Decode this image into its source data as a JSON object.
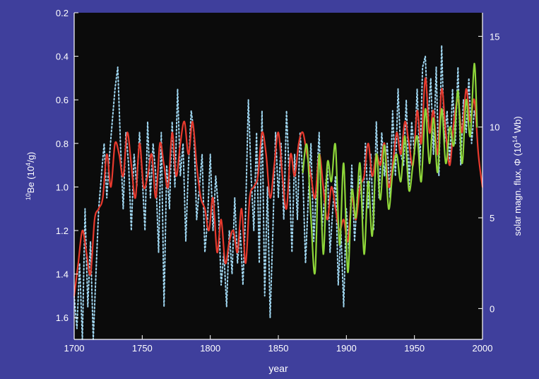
{
  "chart_data": {
    "type": "line",
    "title": "",
    "xlabel": "year",
    "ylabel_left_prefix": "10",
    "ylabel_left": "Be (10",
    "ylabel_left_exp": "4",
    "ylabel_left_suffix": "/g)",
    "ylabel_right": "solar magn. flux, Φ (10",
    "ylabel_right_exp": "14",
    "ylabel_right_suffix": " Wb)",
    "xlim": [
      1700,
      2000
    ],
    "ylim_left": [
      1.7,
      0.2
    ],
    "ylim_right": [
      -1.7,
      16.3
    ],
    "left_axis_inverted": true,
    "grid": false,
    "x_ticks": [
      1700,
      1750,
      1800,
      1850,
      1900,
      1950,
      2000
    ],
    "x_tick_labels": [
      "1700",
      "1750",
      "1800",
      "1850",
      "1900",
      "1950",
      "2000"
    ],
    "y_left_ticks": [
      0.2,
      0.4,
      0.6,
      0.8,
      1.0,
      1.2,
      1.4,
      1.6
    ],
    "y_left_tick_labels": [
      "0.2",
      "0.4",
      "0.6",
      "0.8",
      "1.0",
      "1.2",
      "1.4",
      "1.6"
    ],
    "y_right_ticks": [
      0,
      5,
      10,
      15
    ],
    "y_right_tick_labels": [
      "0",
      "5",
      "10",
      "15"
    ],
    "series": [
      {
        "axis": "left",
        "color": "#9fd6f0",
        "style": "dotted",
        "x": [
          1700,
          1702,
          1704,
          1706,
          1708,
          1710,
          1712,
          1714,
          1716,
          1718,
          1720,
          1722,
          1724,
          1726,
          1728,
          1730,
          1732,
          1734,
          1736,
          1738,
          1740,
          1742,
          1744,
          1746,
          1748,
          1750,
          1752,
          1754,
          1756,
          1758,
          1760,
          1762,
          1764,
          1766,
          1768,
          1770,
          1772,
          1774,
          1776,
          1778,
          1780,
          1782,
          1784,
          1786,
          1788,
          1790,
          1792,
          1794,
          1796,
          1798,
          1800,
          1802,
          1804,
          1806,
          1808,
          1810,
          1812,
          1814,
          1816,
          1818,
          1820,
          1822,
          1824,
          1826,
          1828,
          1830,
          1832,
          1834,
          1836,
          1838,
          1840,
          1842,
          1844,
          1846,
          1848,
          1850,
          1852,
          1854,
          1856,
          1858,
          1860,
          1862,
          1864,
          1866,
          1868,
          1870,
          1872,
          1874,
          1876,
          1878,
          1880,
          1882,
          1884,
          1886,
          1888,
          1890,
          1892,
          1894,
          1896,
          1898,
          1900,
          1902,
          1904,
          1906,
          1908,
          1910,
          1912,
          1914,
          1916,
          1918,
          1920,
          1922,
          1924,
          1926,
          1928,
          1930,
          1932,
          1934,
          1936,
          1938,
          1940,
          1942,
          1944,
          1946,
          1948,
          1950,
          1952,
          1954,
          1956,
          1958,
          1960,
          1962,
          1964,
          1966,
          1968,
          1970,
          1972,
          1974,
          1976,
          1978,
          1980,
          1982,
          1984,
          1986,
          1988,
          1990,
          1992,
          1994,
          1996
        ],
        "values": [
          1.5,
          1.65,
          1.35,
          1.7,
          1.1,
          1.55,
          1.25,
          1.7,
          1.4,
          1.1,
          0.95,
          0.8,
          1.05,
          0.85,
          0.7,
          0.55,
          0.45,
          0.8,
          1.1,
          0.75,
          0.9,
          1.2,
          0.85,
          1.0,
          0.75,
          0.95,
          1.2,
          0.7,
          1.05,
          0.8,
          0.95,
          1.3,
          0.75,
          1.55,
          0.9,
          1.1,
          0.7,
          1.0,
          0.55,
          0.95,
          0.8,
          1.25,
          0.9,
          0.65,
          0.75,
          1.15,
          1.0,
          0.85,
          1.3,
          1.15,
          0.85,
          1.2,
          0.95,
          1.1,
          1.45,
          1.3,
          1.55,
          1.2,
          1.4,
          1.05,
          1.35,
          1.2,
          1.45,
          1.1,
          0.6,
          0.95,
          1.2,
          0.75,
          1.35,
          0.65,
          1.5,
          1.0,
          1.6,
          1.2,
          0.75,
          1.05,
          0.8,
          1.15,
          0.65,
          0.95,
          1.3,
          0.85,
          1.15,
          0.75,
          0.95,
          1.35,
          1.05,
          0.8,
          1.25,
          1.0,
          0.75,
          1.2,
          1.05,
          0.9,
          1.3,
          1.1,
          0.95,
          1.45,
          1.2,
          1.55,
          1.1,
          1.3,
          0.9,
          1.25,
          1.05,
          0.95,
          1.15,
          0.8,
          1.1,
          0.85,
          1.2,
          0.7,
          1.05,
          0.75,
          0.95,
          0.8,
          1.05,
          0.65,
          0.95,
          0.55,
          0.85,
          0.9,
          0.6,
          1.0,
          0.7,
          0.85,
          0.55,
          0.9,
          0.45,
          0.4,
          0.7,
          0.5,
          0.85,
          0.45,
          0.95,
          0.35,
          0.8,
          0.65,
          0.9,
          0.55,
          0.8,
          0.45,
          0.9,
          0.6,
          0.75,
          0.5,
          0.8,
          0.65,
          0.7
        ]
      },
      {
        "axis": "left",
        "color": "#e83a2e",
        "style": "solid",
        "x": [
          1700,
          1703,
          1706,
          1709,
          1712,
          1715,
          1718,
          1721,
          1724,
          1727,
          1730,
          1733,
          1736,
          1739,
          1742,
          1745,
          1748,
          1751,
          1754,
          1757,
          1760,
          1763,
          1766,
          1769,
          1772,
          1775,
          1778,
          1781,
          1784,
          1787,
          1790,
          1793,
          1796,
          1799,
          1802,
          1805,
          1808,
          1811,
          1814,
          1817,
          1820,
          1823,
          1826,
          1829,
          1832,
          1835,
          1838,
          1841,
          1844,
          1847,
          1850,
          1853,
          1856,
          1859,
          1862,
          1865,
          1868,
          1871,
          1874,
          1877,
          1880,
          1883,
          1886,
          1889,
          1892,
          1895,
          1898,
          1901,
          1904,
          1907,
          1910,
          1913,
          1916,
          1919,
          1922,
          1925,
          1928,
          1931,
          1934,
          1937,
          1940,
          1943,
          1946,
          1949,
          1952,
          1955,
          1958,
          1961,
          1964,
          1967,
          1970,
          1973,
          1976,
          1979,
          1982,
          1985,
          1988,
          1991,
          1994,
          1997,
          2000
        ],
        "values": [
          1.5,
          1.35,
          1.2,
          1.3,
          1.4,
          1.15,
          1.1,
          1.05,
          0.85,
          1.0,
          0.8,
          0.85,
          0.95,
          0.75,
          0.9,
          1.05,
          0.8,
          1.0,
          0.95,
          0.85,
          1.05,
          0.8,
          0.9,
          1.0,
          0.75,
          0.95,
          0.8,
          0.7,
          0.85,
          0.7,
          0.9,
          1.05,
          1.1,
          1.2,
          1.05,
          1.3,
          1.15,
          1.35,
          1.25,
          1.2,
          1.3,
          1.1,
          1.35,
          1.05,
          1.0,
          0.95,
          0.75,
          0.85,
          1.05,
          0.9,
          0.75,
          0.95,
          1.1,
          0.85,
          0.95,
          0.8,
          0.75,
          0.85,
          0.95,
          1.05,
          0.85,
          1.0,
          1.15,
          1.0,
          1.1,
          1.2,
          1.15,
          1.25,
          1.05,
          1.15,
          1.0,
          0.95,
          0.8,
          0.95,
          0.85,
          0.9,
          0.8,
          1.0,
          0.9,
          0.75,
          0.85,
          0.7,
          0.8,
          0.9,
          0.65,
          0.8,
          0.5,
          0.75,
          0.65,
          0.85,
          0.55,
          0.75,
          0.9,
          0.7,
          0.6,
          0.75,
          0.55,
          0.7,
          0.6,
          0.85,
          1.0
        ]
      },
      {
        "axis": "right",
        "color": "#8ed63a",
        "style": "solid",
        "x": [
          1868,
          1871,
          1874,
          1877,
          1880,
          1883,
          1886,
          1889,
          1892,
          1895,
          1898,
          1901,
          1904,
          1907,
          1910,
          1913,
          1916,
          1919,
          1922,
          1925,
          1928,
          1931,
          1934,
          1937,
          1940,
          1943,
          1946,
          1949,
          1952,
          1955,
          1958,
          1961,
          1964,
          1967,
          1970,
          1973,
          1976,
          1979,
          1982,
          1985,
          1988,
          1991,
          1994,
          1996
        ],
        "values": [
          7.5,
          9.0,
          5.0,
          2.0,
          8.5,
          3.0,
          8.0,
          7.0,
          9.0,
          3.5,
          8.0,
          2.0,
          6.5,
          5.0,
          8.0,
          3.0,
          7.0,
          4.0,
          8.5,
          6.0,
          9.0,
          5.5,
          7.5,
          8.5,
          7.0,
          9.5,
          6.5,
          8.0,
          9.5,
          7.0,
          11.0,
          8.0,
          10.5,
          7.5,
          11.0,
          8.0,
          10.0,
          9.0,
          12.0,
          8.0,
          11.5,
          9.5,
          13.5,
          10.0
        ]
      }
    ]
  }
}
